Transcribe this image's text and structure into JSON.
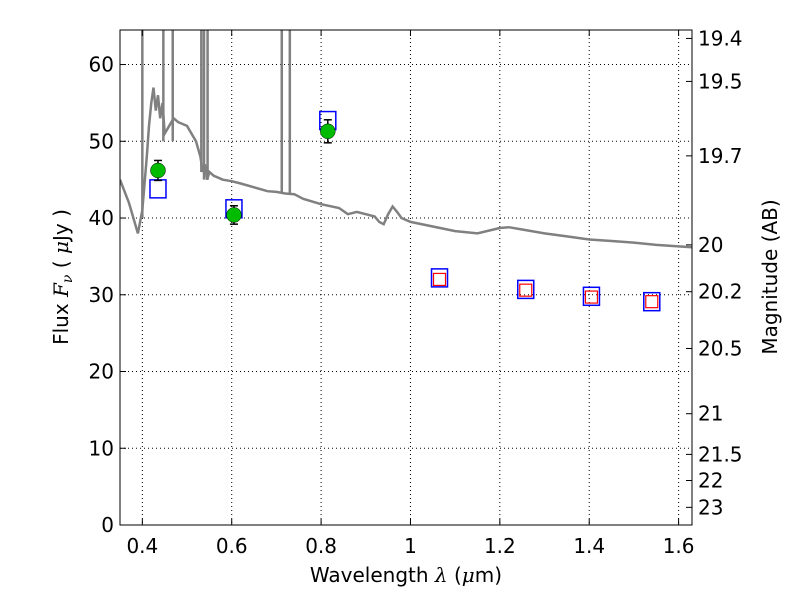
{
  "chart_data": {
    "type": "scatter",
    "xlabel_text": "Wavelength",
    "xlabel_math": "λ",
    "xlabel_unit_open": " (",
    "xlabel_unit_math": "μ",
    "xlabel_unit_close": "m)",
    "ylabel_text": "Flux",
    "ylabel_math": "F",
    "ylabel_math_sub": "ν",
    "ylabel_unit_open": " ( ",
    "ylabel_unit_math": "μ",
    "ylabel_unit_close": "Jy )",
    "y2label": "Magnitude (AB)",
    "xlim": [
      0.35,
      1.63
    ],
    "ylim": [
      0,
      64.5
    ],
    "grid": true,
    "x_ticks": [
      0.4,
      0.6,
      0.8,
      1.0,
      1.2,
      1.4,
      1.6
    ],
    "x_tick_labels": [
      "0.4",
      "0.6",
      "0.8",
      "1",
      "1.2",
      "1.4",
      "1.6"
    ],
    "y_ticks": [
      0,
      10,
      20,
      30,
      40,
      50,
      60
    ],
    "y_tick_labels": [
      "0",
      "10",
      "20",
      "30",
      "40",
      "50",
      "60"
    ],
    "y2_ticks": [
      {
        "label": "19.4",
        "flux": 63.4
      },
      {
        "label": "19.5",
        "flux": 57.8
      },
      {
        "label": "19.7",
        "flux": 48.1
      },
      {
        "label": "20",
        "flux": 36.5
      },
      {
        "label": "20.2",
        "flux": 30.4
      },
      {
        "label": "20.5",
        "flux": 23.0
      },
      {
        "label": "21",
        "flux": 14.5
      },
      {
        "label": "21.5",
        "flux": 9.2
      },
      {
        "label": "22",
        "flux": 5.8
      },
      {
        "label": "23",
        "flux": 2.3
      }
    ],
    "series": [
      {
        "kind": "model-spectrum",
        "color": "#808080",
        "x": [
          0.35,
          0.37,
          0.39,
          0.4,
          0.41,
          0.415,
          0.42,
          0.425,
          0.43,
          0.435,
          0.44,
          0.445,
          0.45,
          0.46,
          0.47,
          0.48,
          0.5,
          0.52,
          0.53,
          0.535,
          0.54,
          0.545,
          0.55,
          0.56,
          0.58,
          0.6,
          0.62,
          0.65,
          0.68,
          0.7,
          0.72,
          0.74,
          0.76,
          0.8,
          0.84,
          0.86,
          0.88,
          0.9,
          0.92,
          0.93,
          0.94,
          0.95,
          0.96,
          0.97,
          0.98,
          1.0,
          1.05,
          1.1,
          1.15,
          1.2,
          1.22,
          1.25,
          1.3,
          1.35,
          1.4,
          1.45,
          1.5,
          1.55,
          1.6,
          1.63
        ],
        "y": [
          45,
          42,
          38,
          41,
          48,
          52,
          55,
          57,
          54,
          56,
          53,
          55,
          51,
          52,
          53,
          52.5,
          52,
          50,
          48,
          46,
          47,
          45,
          46,
          45.5,
          45,
          44.8,
          44.5,
          44,
          43.5,
          43.4,
          43.2,
          43.1,
          42.5,
          41.8,
          41.3,
          40.5,
          40.8,
          40.5,
          40.2,
          39.5,
          39.2,
          40.5,
          41.5,
          40.8,
          40,
          39.5,
          38.9,
          38.3,
          38.0,
          38.7,
          38.8,
          38.5,
          38.0,
          37.6,
          37.2,
          37.0,
          36.8,
          36.5,
          36.3,
          36.2
        ]
      },
      {
        "kind": "model-photometry",
        "color": "#0000ff",
        "x": [
          0.435,
          0.605,
          0.815,
          1.065,
          1.258,
          1.405,
          1.54
        ],
        "y": [
          43.8,
          41.2,
          52.7,
          32.2,
          30.7,
          29.8,
          29.1
        ]
      },
      {
        "kind": "observed-optical",
        "color": "#00bb00",
        "x": [
          0.435,
          0.605,
          0.815
        ],
        "y": [
          46.2,
          40.4,
          51.3
        ],
        "yerr": [
          1.3,
          1.2,
          1.5
        ]
      },
      {
        "kind": "observed-nir",
        "color": "#ff0000",
        "x": [
          1.065,
          1.258,
          1.405,
          1.54
        ],
        "y": [
          32.0,
          30.6,
          29.7,
          29.1
        ]
      }
    ],
    "spikes": [
      {
        "x": 0.4,
        "from": 40,
        "to": 64.5
      },
      {
        "x": 0.447,
        "from": 50,
        "to": 64.5
      },
      {
        "x": 0.468,
        "from": 50,
        "to": 64.5
      },
      {
        "x": 0.532,
        "from": 46,
        "to": 64.5
      },
      {
        "x": 0.538,
        "from": 45,
        "to": 64.5
      },
      {
        "x": 0.546,
        "from": 45,
        "to": 64.5
      },
      {
        "x": 0.712,
        "from": 43.4,
        "to": 64.5
      },
      {
        "x": 0.73,
        "from": 43.2,
        "to": 64.5
      }
    ]
  }
}
